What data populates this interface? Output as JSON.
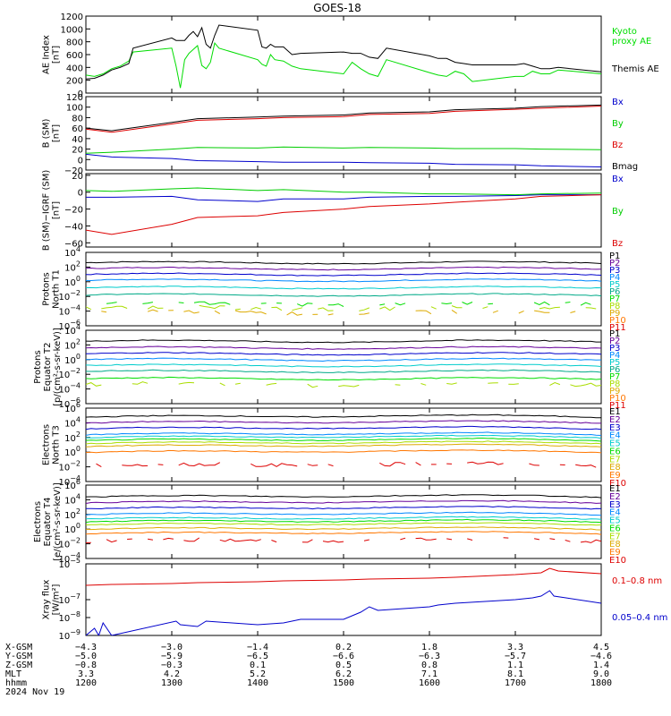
{
  "title": "GOES-18",
  "colors": {
    "black": "#000000",
    "red": "#dd0000",
    "green": "#00cc00",
    "blue": "#0000cc",
    "kyoto": "#00dd00"
  },
  "chart_data": [
    {
      "type": "line",
      "id": "ae",
      "ylabel": [
        "AE Index",
        "[nT]"
      ],
      "ylim": [
        0,
        1200
      ],
      "yticks": [
        "1200",
        "1000",
        "800",
        "600",
        "400",
        "200",
        "0"
      ],
      "grid": false,
      "series": [
        {
          "name": "Kyoto proxy AE",
          "label_lines": [
            "Kyoto",
            "proxy AE"
          ],
          "color": "#00dd00",
          "x": [
            1200,
            1210,
            1220,
            1230,
            1240,
            1250,
            1255,
            1300,
            1305,
            1310,
            1315,
            1320,
            1325,
            1330,
            1335,
            1340,
            1345,
            1350,
            1355,
            1400,
            1405,
            1410,
            1415,
            1420,
            1430,
            1440,
            1450,
            1500,
            1510,
            1520,
            1530,
            1540,
            1550,
            1600,
            1610,
            1620,
            1630,
            1640,
            1650,
            1700,
            1710,
            1720,
            1730,
            1740,
            1750,
            1800
          ],
          "y": [
            280,
            260,
            300,
            380,
            420,
            500,
            640,
            700,
            420,
            80,
            520,
            620,
            680,
            740,
            430,
            380,
            480,
            780,
            700,
            520,
            450,
            420,
            600,
            520,
            500,
            420,
            380,
            300,
            480,
            380,
            300,
            260,
            520,
            320,
            280,
            260,
            340,
            300,
            180,
            260,
            260,
            340,
            300,
            300,
            360,
            300
          ]
        },
        {
          "name": "Themis AE",
          "label_lines": [
            "Themis AE"
          ],
          "color": "#000000",
          "x": [
            1200,
            1210,
            1220,
            1230,
            1240,
            1250,
            1255,
            1300,
            1305,
            1310,
            1315,
            1320,
            1325,
            1330,
            1335,
            1340,
            1345,
            1350,
            1355,
            1400,
            1405,
            1410,
            1415,
            1420,
            1430,
            1440,
            1450,
            1500,
            1510,
            1520,
            1530,
            1540,
            1550,
            1600,
            1610,
            1620,
            1630,
            1640,
            1650,
            1700,
            1710,
            1720,
            1730,
            1740,
            1750,
            1800
          ],
          "y": [
            220,
            230,
            280,
            360,
            400,
            460,
            700,
            860,
            820,
            820,
            820,
            900,
            960,
            880,
            1020,
            760,
            700,
            900,
            1060,
            980,
            720,
            700,
            760,
            720,
            720,
            600,
            620,
            640,
            620,
            620,
            560,
            540,
            700,
            580,
            540,
            540,
            480,
            460,
            440,
            440,
            460,
            420,
            380,
            380,
            400,
            330
          ]
        }
      ]
    },
    {
      "type": "line",
      "id": "bsm",
      "ylabel": [
        "B (SM)",
        "[nT]"
      ],
      "ylim": [
        -20,
        120
      ],
      "yticks": [
        "120",
        "100",
        "80",
        "60",
        "40",
        "20",
        "0",
        "−20"
      ],
      "grid": false,
      "series": [
        {
          "name": "Bx",
          "color": "#0000cc",
          "x": [
            1200,
            1230,
            1300,
            1330,
            1400,
            1430,
            1500,
            1530,
            1600,
            1630,
            1700,
            1730,
            1800
          ],
          "y": [
            10,
            5,
            2,
            -2,
            -4,
            -5,
            -5,
            -6,
            -7,
            -9,
            -10,
            -12,
            -14
          ]
        },
        {
          "name": "By",
          "color": "#00cc00",
          "x": [
            1200,
            1230,
            1300,
            1330,
            1400,
            1430,
            1500,
            1530,
            1600,
            1630,
            1700,
            1730,
            1800
          ],
          "y": [
            12,
            14,
            20,
            23,
            22,
            24,
            22,
            23,
            22,
            21,
            21,
            20,
            19
          ]
        },
        {
          "name": "Bz",
          "color": "#dd0000",
          "x": [
            1200,
            1230,
            1300,
            1330,
            1400,
            1430,
            1500,
            1530,
            1600,
            1630,
            1700,
            1730,
            1800
          ],
          "y": [
            58,
            52,
            68,
            75,
            78,
            80,
            82,
            86,
            88,
            92,
            96,
            98,
            102
          ]
        },
        {
          "name": "Bmag",
          "color": "#000000",
          "x": [
            1200,
            1230,
            1300,
            1330,
            1400,
            1430,
            1500,
            1530,
            1600,
            1630,
            1700,
            1730,
            1800
          ],
          "y": [
            60,
            55,
            71,
            78,
            81,
            83,
            85,
            89,
            91,
            95,
            98,
            101,
            104
          ]
        }
      ]
    },
    {
      "type": "line",
      "id": "bigrf",
      "ylabel": [
        "B (SM)−IGRF (SM)",
        "[nT]"
      ],
      "ylim": [
        -65,
        22
      ],
      "yticks": [
        "20",
        "0",
        "−20",
        "−40",
        "−60"
      ],
      "grid": false,
      "series": [
        {
          "name": "Bx",
          "color": "#0000cc",
          "x": [
            1200,
            1230,
            1300,
            1330,
            1400,
            1430,
            1500,
            1530,
            1600,
            1630,
            1700,
            1730,
            1800
          ],
          "y": [
            -6,
            -6,
            -5,
            -9,
            -11,
            -8,
            -8,
            -6,
            -5,
            -5,
            -4,
            -3,
            -3
          ]
        },
        {
          "name": "By",
          "color": "#00cc00",
          "x": [
            1200,
            1230,
            1300,
            1330,
            1400,
            1430,
            1500,
            1530,
            1600,
            1630,
            1700,
            1730,
            1800
          ],
          "y": [
            2,
            1,
            4,
            5,
            2,
            3,
            0,
            0,
            -2,
            -2,
            -3,
            -2,
            -1
          ]
        },
        {
          "name": "Bz",
          "color": "#dd0000",
          "x": [
            1200,
            1230,
            1300,
            1330,
            1400,
            1430,
            1500,
            1530,
            1600,
            1630,
            1700,
            1730,
            1800
          ],
          "y": [
            -45,
            -50,
            -38,
            -30,
            -28,
            -24,
            -20,
            -17,
            -14,
            -12,
            -8,
            -5,
            -3
          ]
        }
      ]
    },
    {
      "type": "line",
      "id": "protons-t1",
      "ylabel": [
        "Protons",
        "North T1"
      ],
      "log": true,
      "ylim_exp": [
        -6,
        4
      ],
      "ytick_exponents": [
        4,
        2,
        0,
        -2,
        -4,
        -6
      ],
      "grid": false,
      "channels": [
        "P1",
        "P2",
        "P3",
        "P4",
        "P5",
        "P6",
        "P7",
        "P8",
        "P9",
        "P10",
        "P11"
      ],
      "channel_colors": [
        "#000000",
        "#660099",
        "#0000cc",
        "#0088ff",
        "#00cccc",
        "#00aa88",
        "#00dd00",
        "#aadd00",
        "#ddaa00",
        "#ff7700",
        "#dd0000"
      ],
      "levels_exp": [
        2.6,
        1.8,
        1.0,
        0.2,
        -0.8,
        -1.8,
        -3.0,
        -3.6,
        -4.2,
        null,
        null
      ]
    },
    {
      "type": "line",
      "id": "protons-t2",
      "ylabel": [
        "Protons",
        "Equator T2",
        "[p/(cm²-s-sr-keV)]"
      ],
      "log": true,
      "ylim_exp": [
        -6,
        4
      ],
      "ytick_exponents": [
        4,
        2,
        0,
        -2,
        -4,
        -6
      ],
      "grid": false,
      "channels": [
        "P1",
        "P2",
        "P3",
        "P4",
        "P5",
        "P6",
        "P7",
        "P8",
        "P9",
        "P10",
        "P11"
      ],
      "channel_colors": [
        "#000000",
        "#660099",
        "#0000cc",
        "#0088ff",
        "#00cccc",
        "#00aa88",
        "#00dd00",
        "#aadd00",
        "#ddaa00",
        "#ff7700",
        "#dd0000"
      ],
      "levels_exp": [
        2.5,
        1.6,
        0.8,
        0.0,
        -0.8,
        -1.6,
        -2.6,
        -3.4,
        null,
        null,
        null
      ]
    },
    {
      "type": "line",
      "id": "electrons-t3",
      "ylabel": [
        "Electrons",
        "North T3"
      ],
      "log": true,
      "ylim_exp": [
        -4,
        6
      ],
      "ytick_exponents": [
        6,
        4,
        2,
        0,
        -2,
        -4
      ],
      "grid": false,
      "channels": [
        "E1",
        "E2",
        "E3",
        "E4",
        "E5",
        "E6",
        "E7",
        "E8",
        "E9",
        "E10"
      ],
      "channel_colors": [
        "#000000",
        "#660099",
        "#0000cc",
        "#0088ff",
        "#00cccc",
        "#00dd00",
        "#aadd00",
        "#ddaa00",
        "#ff7700",
        "#dd0000"
      ],
      "levels_exp": [
        5.0,
        4.2,
        3.4,
        2.6,
        2.2,
        1.8,
        1.4,
        1.0,
        0.2,
        -1.6
      ]
    },
    {
      "type": "line",
      "id": "electrons-t4",
      "ylabel": [
        "Electrons",
        "Equator T4",
        "[e/(cm²-s-sr-keV)]"
      ],
      "log": true,
      "ylim_exp": [
        -4,
        6
      ],
      "ytick_exponents": [
        6,
        4,
        2,
        0,
        -2,
        -4
      ],
      "grid": false,
      "channels": [
        "E1",
        "E2",
        "E3",
        "E4",
        "E5",
        "E6",
        "E7",
        "E8",
        "E9",
        "E10"
      ],
      "channel_colors": [
        "#000000",
        "#660099",
        "#0000cc",
        "#0088ff",
        "#00cccc",
        "#00dd00",
        "#aadd00",
        "#ddaa00",
        "#ff7700",
        "#dd0000"
      ],
      "levels_exp": [
        4.6,
        3.8,
        3.0,
        2.2,
        1.6,
        1.2,
        0.8,
        0.2,
        -0.4,
        -1.4
      ]
    },
    {
      "type": "line",
      "id": "xray",
      "ylabel": [
        "Xray flux",
        "[W/m²]"
      ],
      "log": true,
      "ylim_exp": [
        -9,
        -5
      ],
      "ytick_exponents": [
        -5,
        -7,
        -8,
        -9
      ],
      "grid": false,
      "series": [
        {
          "name": "0.1–0.8 nm",
          "color": "#dd0000",
          "x": [
            1200,
            1230,
            1300,
            1330,
            1400,
            1430,
            1500,
            1530,
            1600,
            1630,
            1700,
            1730,
            1740,
            1750,
            1800
          ],
          "y_exp": [
            -6.2,
            -6.15,
            -6.1,
            -6.05,
            -6.0,
            -5.95,
            -5.9,
            -5.85,
            -5.8,
            -5.75,
            -5.6,
            -5.5,
            -5.25,
            -5.4,
            -5.55
          ]
        },
        {
          "name": "0.05–0.4 nm",
          "color": "#0000cc",
          "x": [
            1200,
            1210,
            1215,
            1220,
            1230,
            1305,
            1310,
            1330,
            1340,
            1400,
            1430,
            1450,
            1500,
            1520,
            1530,
            1540,
            1600,
            1610,
            1630,
            1700,
            1720,
            1730,
            1740,
            1745,
            1800
          ],
          "y_exp": [
            -9,
            -8.6,
            -9,
            -8.3,
            -9,
            -8.2,
            -8.4,
            -8.5,
            -8.2,
            -8.4,
            -8.3,
            -8.1,
            -8.1,
            -7.7,
            -7.4,
            -7.6,
            -7.4,
            -7.3,
            -7.2,
            -7.0,
            -6.9,
            -6.8,
            -6.5,
            -6.8,
            -7.2
          ]
        }
      ]
    }
  ],
  "xaxis": {
    "range": [
      1200,
      1800
    ],
    "rows": [
      {
        "name": "X-GSM",
        "values": [
          "−4.3",
          "−3.0",
          "−1.4",
          "0.2",
          "1.8",
          "3.3",
          "4.5"
        ]
      },
      {
        "name": "Y-GSM",
        "values": [
          "−5.0",
          "−5.9",
          "−6.5",
          "−6.6",
          "−6.3",
          "−5.7",
          "−4.6"
        ]
      },
      {
        "name": "Z-GSM",
        "values": [
          "−0.8",
          "−0.3",
          "0.1",
          "0.5",
          "0.8",
          "1.1",
          "1.4"
        ]
      },
      {
        "name": "MLT",
        "values": [
          "3.3",
          "4.2",
          "5.2",
          "6.2",
          "7.1",
          "8.1",
          "9.0"
        ]
      },
      {
        "name": "hhmm",
        "values": [
          "1200",
          "1300",
          "1400",
          "1500",
          "1600",
          "1700",
          "1800"
        ]
      }
    ],
    "date": "2024 Nov 19"
  }
}
